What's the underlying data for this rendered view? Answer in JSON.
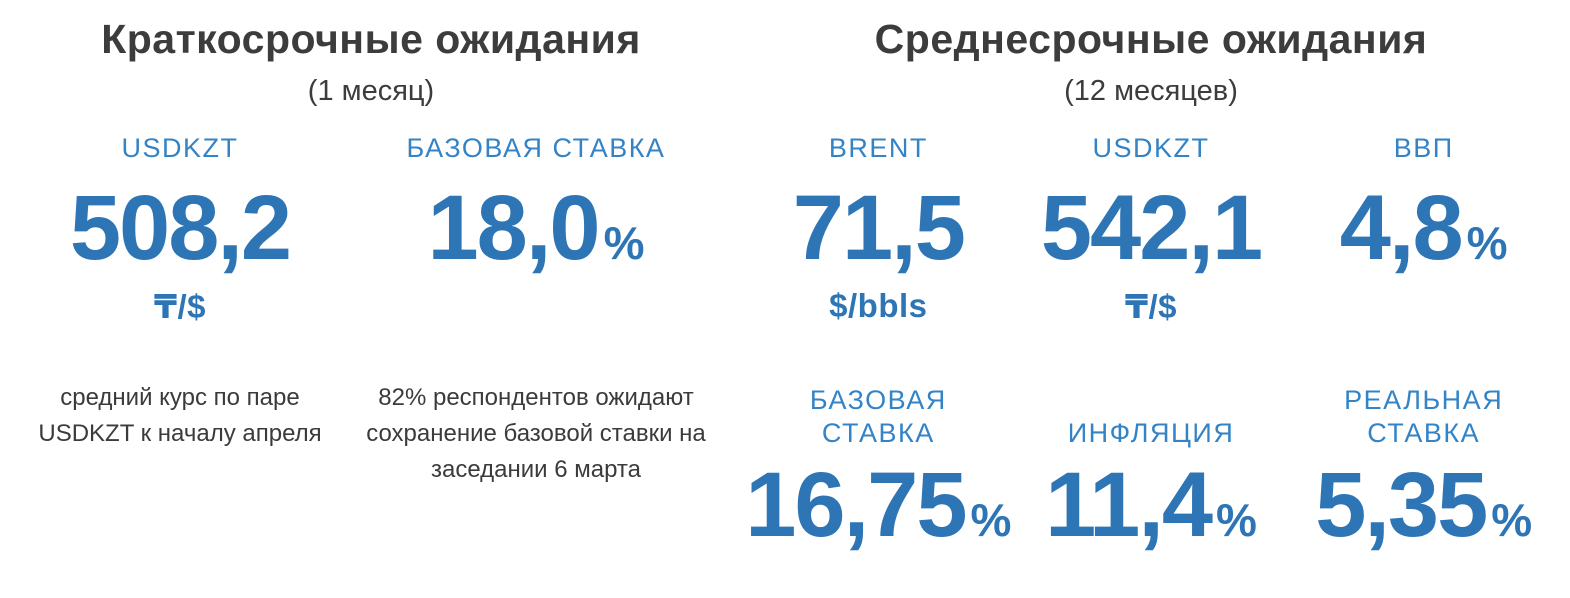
{
  "colors": {
    "value_blue": "#2e75b6",
    "label_blue": "#3383c6",
    "heading_dark": "#3c3c3c"
  },
  "short_term": {
    "title": "Краткосрочные ожидания",
    "period": "(1 месяц)",
    "usdkzt": {
      "label": "USDKZT",
      "value": "508,2",
      "unit": "₸/$",
      "note": "средний курс по паре USDKZT к началу апреля"
    },
    "base_rate": {
      "label": "БАЗОВАЯ СТАВКА",
      "value": "18,0",
      "suffix": "%",
      "note": "82% респондентов ожидают сохранение базовой ставки на заседании 6 марта"
    }
  },
  "mid_term": {
    "title": "Среднесрочные ожидания",
    "period": "(12 месяцев)",
    "brent": {
      "label": "BRENT",
      "value": "71,5",
      "unit": "$/bbls"
    },
    "usdkzt": {
      "label": "USDKZT",
      "value": "542,1",
      "unit": "₸/$"
    },
    "gdp": {
      "label": "ВВП",
      "value": "4,8",
      "suffix": "%"
    },
    "base_rate": {
      "label": "БАЗОВАЯ СТАВКА",
      "value": "16,75",
      "suffix": "%"
    },
    "inflation": {
      "label": "ИНФЛЯЦИЯ",
      "value": "11,4",
      "suffix": "%"
    },
    "real_rate": {
      "label": "РЕАЛЬНАЯ СТАВКА",
      "value": "5,35",
      "suffix": "%"
    }
  }
}
